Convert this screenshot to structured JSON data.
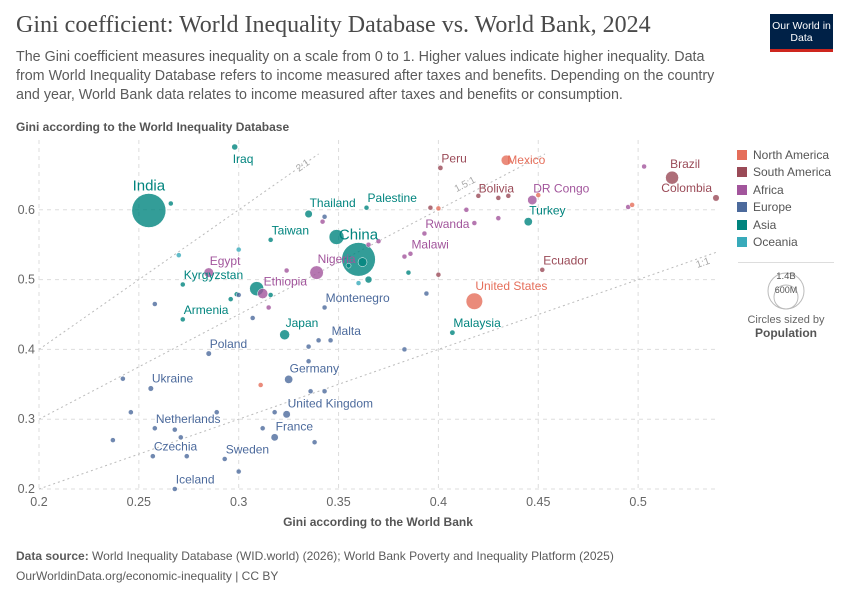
{
  "header": {
    "title": "Gini coefficient: World Inequality Database vs. World Bank, 2024",
    "subtitle": "The Gini coefficient measures inequality on a scale from 0 to 1. Higher values indicate higher inequality. Data from World Inequality Database refers to income measured after taxes and benefits. Depending on the country and year, World Bank data relates to income measured after taxes and benefits or consumption.",
    "logo": "Our World in Data"
  },
  "footer": {
    "source_label": "Data source:",
    "source": "World Inequality Database (WID.world) (2026); World Bank Poverty and Inequality Platform (2025)",
    "link": "OurWorldinData.org/economic-inequality | CC BY"
  },
  "size_legend": {
    "big": "1.4B",
    "small": "600M",
    "caption": "Circles sized by",
    "variable": "Population"
  },
  "chart_data": {
    "type": "scatter",
    "xlabel": "Gini according to the World Bank",
    "ylabel": "Gini according to the World Inequality Database",
    "xlim": [
      0.2,
      0.54
    ],
    "ylim": [
      0.2,
      0.7
    ],
    "xticks": [
      "0.2",
      "0.25",
      "0.3",
      "0.35",
      "0.4",
      "0.45",
      "0.5"
    ],
    "yticks": [
      "0.2",
      "0.3",
      "0.4",
      "0.5",
      "0.6"
    ],
    "grid": true,
    "legend_position": "right",
    "reference_lines": [
      {
        "label": "1:1",
        "slope": 1
      },
      {
        "label": "1.5:1",
        "slope": 1.5
      },
      {
        "label": "2:1",
        "slope": 2
      }
    ],
    "regions": [
      {
        "name": "North America",
        "color": "#e56e5a"
      },
      {
        "name": "South America",
        "color": "#9a4a57"
      },
      {
        "name": "Africa",
        "color": "#a2559c"
      },
      {
        "name": "Europe",
        "color": "#4c6a9c"
      },
      {
        "name": "Asia",
        "color": "#00847e"
      },
      {
        "name": "Oceania",
        "color": "#38aaba"
      }
    ],
    "points": [
      {
        "label": "India",
        "region": "Asia",
        "x": 0.255,
        "y": 0.599,
        "pop": 1440000000,
        "big": true
      },
      {
        "label": "China",
        "region": "Asia",
        "x": 0.36,
        "y": 0.529,
        "pop": 1410000000,
        "big": true
      },
      {
        "label": "Iraq",
        "region": "Asia",
        "x": 0.298,
        "y": 0.69,
        "pop": 45000000
      },
      {
        "label": "Thailand",
        "region": "Asia",
        "x": 0.335,
        "y": 0.594,
        "pop": 71000000
      },
      {
        "label": "Palestine",
        "region": "Asia",
        "x": 0.364,
        "y": 0.603,
        "pop": 5000000
      },
      {
        "label": "Taiwan",
        "region": "Asia",
        "x": 0.316,
        "y": 0.557,
        "pop": 23000000
      },
      {
        "label": "Kyrgyzstan",
        "region": "Asia",
        "x": 0.272,
        "y": 0.493,
        "pop": 7000000
      },
      {
        "label": "Armenia",
        "region": "Asia",
        "x": 0.272,
        "y": 0.443,
        "pop": 3000000
      },
      {
        "label": "Japan",
        "region": "Asia",
        "x": 0.323,
        "y": 0.421,
        "pop": 124000000
      },
      {
        "label": "Malaysia",
        "region": "Asia",
        "x": 0.407,
        "y": 0.424,
        "pop": 35000000
      },
      {
        "label": "Turkey",
        "region": "Asia",
        "x": 0.445,
        "y": 0.583,
        "pop": 86000000
      },
      {
        "label": "Egypt",
        "region": "Africa",
        "x": 0.285,
        "y": 0.51,
        "pop": 114000000
      },
      {
        "label": "Nigeria",
        "region": "Africa",
        "x": 0.339,
        "y": 0.51,
        "pop": 230000000
      },
      {
        "label": "Ethiopia",
        "region": "Africa",
        "x": 0.312,
        "y": 0.48,
        "pop": 130000000
      },
      {
        "label": "Rwanda",
        "region": "Africa",
        "x": 0.393,
        "y": 0.566,
        "pop": 14000000
      },
      {
        "label": "Malawi",
        "region": "Africa",
        "x": 0.386,
        "y": 0.537,
        "pop": 21000000
      },
      {
        "label": "DR Congo",
        "region": "Africa",
        "x": 0.447,
        "y": 0.614,
        "pop": 109000000
      },
      {
        "label": "Montenegro",
        "region": "Europe",
        "x": 0.343,
        "y": 0.46,
        "pop": 600000
      },
      {
        "label": "Malta",
        "region": "Europe",
        "x": 0.346,
        "y": 0.413,
        "pop": 500000
      },
      {
        "label": "Poland",
        "region": "Europe",
        "x": 0.285,
        "y": 0.394,
        "pop": 37000000
      },
      {
        "label": "Ukraine",
        "region": "Europe",
        "x": 0.256,
        "y": 0.344,
        "pop": 38000000
      },
      {
        "label": "Germany",
        "region": "Europe",
        "x": 0.325,
        "y": 0.357,
        "pop": 84000000
      },
      {
        "label": "United Kingdom",
        "region": "Europe",
        "x": 0.324,
        "y": 0.307,
        "pop": 69000000
      },
      {
        "label": "France",
        "region": "Europe",
        "x": 0.318,
        "y": 0.274,
        "pop": 66000000
      },
      {
        "label": "Netherlands",
        "region": "Europe",
        "x": 0.258,
        "y": 0.287,
        "pop": 18000000
      },
      {
        "label": "Czechia",
        "region": "Europe",
        "x": 0.257,
        "y": 0.247,
        "pop": 11000000
      },
      {
        "label": "Sweden",
        "region": "Europe",
        "x": 0.293,
        "y": 0.243,
        "pop": 10500000
      },
      {
        "label": "Iceland",
        "region": "Europe",
        "x": 0.268,
        "y": 0.2,
        "pop": 400000
      },
      {
        "label": "United States",
        "region": "North America",
        "x": 0.418,
        "y": 0.469,
        "pop": 340000000
      },
      {
        "label": "Mexico",
        "region": "North America",
        "x": 0.434,
        "y": 0.671,
        "pop": 130000000
      },
      {
        "label": "Peru",
        "region": "South America",
        "x": 0.401,
        "y": 0.66,
        "pop": 34000000
      },
      {
        "label": "Bolivia",
        "region": "South America",
        "x": 0.43,
        "y": 0.617,
        "pop": 12000000
      },
      {
        "label": "Ecuador",
        "region": "South America",
        "x": 0.452,
        "y": 0.514,
        "pop": 18000000
      },
      {
        "label": "Brazil",
        "region": "South America",
        "x": 0.517,
        "y": 0.646,
        "pop": 212000000
      },
      {
        "label": "Colombia",
        "region": "South America",
        "x": 0.539,
        "y": 0.617,
        "pop": 53000000
      },
      {
        "region": "Asia",
        "x": 0.266,
        "y": 0.609,
        "pop": 5000000
      },
      {
        "region": "Asia",
        "x": 0.349,
        "y": 0.561,
        "pop": 280000000
      },
      {
        "region": "Asia",
        "x": 0.309,
        "y": 0.487,
        "pop": 250000000
      },
      {
        "region": "Asia",
        "x": 0.316,
        "y": 0.478,
        "pop": 10000000
      },
      {
        "region": "Asia",
        "x": 0.365,
        "y": 0.5,
        "pop": 60000000
      },
      {
        "region": "Asia",
        "x": 0.362,
        "y": 0.525,
        "pop": 100000000
      },
      {
        "region": "Asia",
        "x": 0.355,
        "y": 0.52,
        "pop": 30000000
      },
      {
        "region": "Asia",
        "x": 0.385,
        "y": 0.51,
        "pop": 3000000
      },
      {
        "region": "Asia",
        "x": 0.296,
        "y": 0.472,
        "pop": 5000000
      },
      {
        "region": "Asia",
        "x": 0.299,
        "y": 0.479,
        "pop": 5000000
      },
      {
        "region": "Oceania",
        "x": 0.27,
        "y": 0.535,
        "pop": 5000000
      },
      {
        "region": "Oceania",
        "x": 0.3,
        "y": 0.543,
        "pop": 5000000
      },
      {
        "region": "Oceania",
        "x": 0.36,
        "y": 0.495,
        "pop": 26000000
      },
      {
        "region": "Africa",
        "x": 0.342,
        "y": 0.583,
        "pop": 4000000
      },
      {
        "region": "Africa",
        "x": 0.324,
        "y": 0.513,
        "pop": 6000000
      },
      {
        "region": "Africa",
        "x": 0.315,
        "y": 0.46,
        "pop": 6000000
      },
      {
        "region": "Africa",
        "x": 0.365,
        "y": 0.55,
        "pop": 6000000
      },
      {
        "region": "Africa",
        "x": 0.383,
        "y": 0.533,
        "pop": 6000000
      },
      {
        "region": "Africa",
        "x": 0.418,
        "y": 0.581,
        "pop": 10000000
      },
      {
        "region": "Africa",
        "x": 0.414,
        "y": 0.6,
        "pop": 20000000
      },
      {
        "region": "Africa",
        "x": 0.43,
        "y": 0.588,
        "pop": 6000000
      },
      {
        "region": "Africa",
        "x": 0.495,
        "y": 0.604,
        "pop": 10000000
      },
      {
        "region": "Africa",
        "x": 0.503,
        "y": 0.662,
        "pop": 6000000
      },
      {
        "region": "Africa",
        "x": 0.37,
        "y": 0.555,
        "pop": 8000000
      },
      {
        "region": "South America",
        "x": 0.4,
        "y": 0.507,
        "pop": 5000000
      },
      {
        "region": "South America",
        "x": 0.396,
        "y": 0.603,
        "pop": 5000000
      },
      {
        "region": "South America",
        "x": 0.435,
        "y": 0.62,
        "pop": 5000000
      },
      {
        "region": "South America",
        "x": 0.42,
        "y": 0.62,
        "pop": 5000000
      },
      {
        "region": "North America",
        "x": 0.311,
        "y": 0.349,
        "pop": 10000000
      },
      {
        "region": "North America",
        "x": 0.4,
        "y": 0.602,
        "pop": 5000000
      },
      {
        "region": "North America",
        "x": 0.45,
        "y": 0.621,
        "pop": 5000000
      },
      {
        "region": "North America",
        "x": 0.497,
        "y": 0.607,
        "pop": 5000000
      },
      {
        "region": "Europe",
        "x": 0.242,
        "y": 0.358,
        "pop": 4000000
      },
      {
        "region": "Europe",
        "x": 0.246,
        "y": 0.31,
        "pop": 4000000
      },
      {
        "region": "Europe",
        "x": 0.237,
        "y": 0.27,
        "pop": 4000000
      },
      {
        "region": "Europe",
        "x": 0.268,
        "y": 0.285,
        "pop": 4000000
      },
      {
        "region": "Europe",
        "x": 0.271,
        "y": 0.274,
        "pop": 4000000
      },
      {
        "region": "Europe",
        "x": 0.289,
        "y": 0.31,
        "pop": 4000000
      },
      {
        "region": "Europe",
        "x": 0.274,
        "y": 0.247,
        "pop": 4000000
      },
      {
        "region": "Europe",
        "x": 0.3,
        "y": 0.225,
        "pop": 4000000
      },
      {
        "region": "Europe",
        "x": 0.312,
        "y": 0.287,
        "pop": 4000000
      },
      {
        "region": "Europe",
        "x": 0.318,
        "y": 0.31,
        "pop": 4000000
      },
      {
        "region": "Europe",
        "x": 0.338,
        "y": 0.267,
        "pop": 4000000
      },
      {
        "region": "Europe",
        "x": 0.336,
        "y": 0.34,
        "pop": 4000000
      },
      {
        "region": "Europe",
        "x": 0.343,
        "y": 0.34,
        "pop": 10000000
      },
      {
        "region": "Europe",
        "x": 0.335,
        "y": 0.383,
        "pop": 4000000
      },
      {
        "region": "Europe",
        "x": 0.335,
        "y": 0.404,
        "pop": 4000000
      },
      {
        "region": "Europe",
        "x": 0.34,
        "y": 0.413,
        "pop": 4000000
      },
      {
        "region": "Europe",
        "x": 0.383,
        "y": 0.4,
        "pop": 4000000
      },
      {
        "region": "Europe",
        "x": 0.307,
        "y": 0.445,
        "pop": 4000000
      },
      {
        "region": "Europe",
        "x": 0.3,
        "y": 0.478,
        "pop": 4000000
      },
      {
        "region": "Europe",
        "x": 0.258,
        "y": 0.465,
        "pop": 4000000
      },
      {
        "region": "Europe",
        "x": 0.394,
        "y": 0.48,
        "pop": 4000000
      },
      {
        "region": "Europe",
        "x": 0.343,
        "y": 0.59,
        "pop": 4000000
      }
    ]
  }
}
